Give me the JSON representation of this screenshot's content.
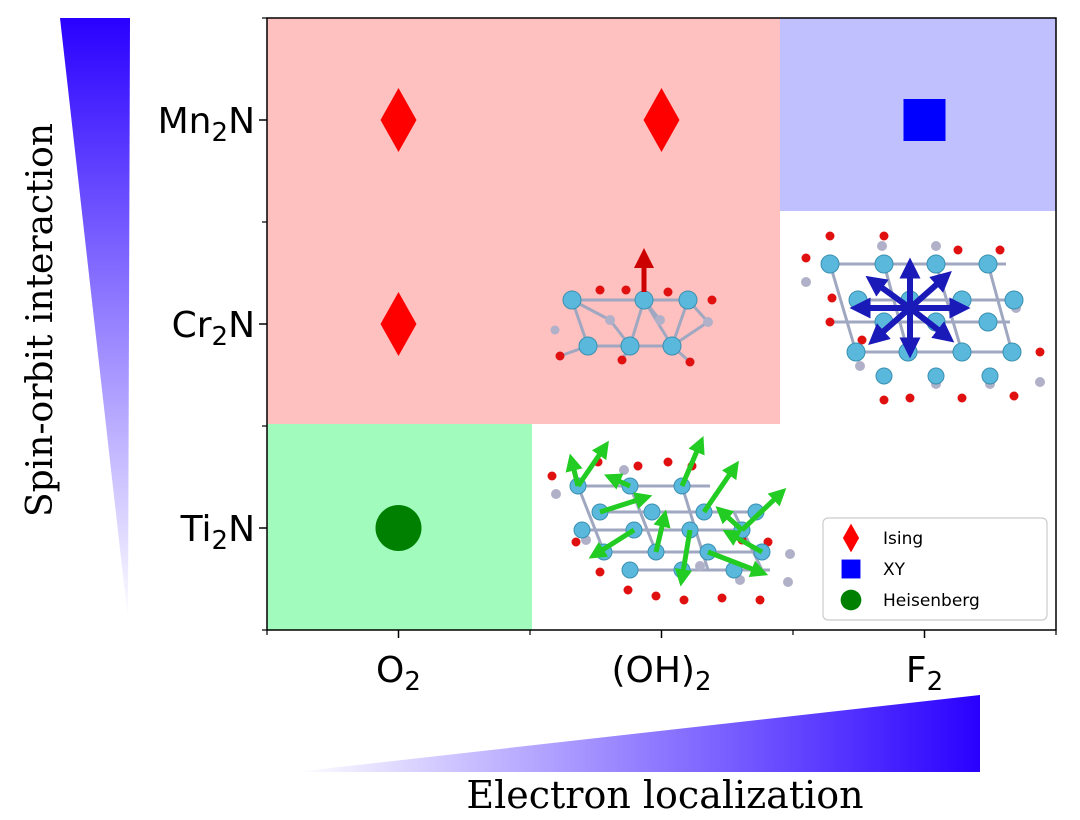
{
  "chart_data": {
    "type": "scatter",
    "title": "",
    "x_categories": [
      {
        "base": "O",
        "sub": "2"
      },
      {
        "base": "(OH)",
        "sub": "2"
      },
      {
        "base": "F",
        "sub": "2"
      }
    ],
    "y_categories": [
      {
        "pre": "Ti",
        "sub": "2",
        "post": "N"
      },
      {
        "pre": "Cr",
        "sub": "2",
        "post": "N"
      },
      {
        "pre": "Mn",
        "sub": "2",
        "post": "N"
      }
    ],
    "xlabel": "Electron localization",
    "ylabel": "Spin-orbit interaction",
    "series": [
      {
        "name": "Ising",
        "marker": "diamond",
        "color": "#ff0000",
        "points": [
          [
            "O2",
            "Mn2N"
          ],
          [
            "(OH)2",
            "Mn2N"
          ],
          [
            "O2",
            "Cr2N"
          ]
        ]
      },
      {
        "name": "XY",
        "marker": "square",
        "color": "#0000ff",
        "points": [
          [
            "F2",
            "Mn2N"
          ]
        ]
      },
      {
        "name": "Heisenberg",
        "marker": "circle",
        "color": "#008000",
        "points": [
          [
            "O2",
            "Ti2N"
          ]
        ]
      }
    ],
    "regions": [
      {
        "model": "Ising",
        "color": "#ffc0c0"
      },
      {
        "model": "XY",
        "color": "#c0c0ff"
      },
      {
        "model": "Heisenberg",
        "color": "#a0fbbd"
      }
    ],
    "legend_position": "bottom-right",
    "grid": false
  },
  "colors": {
    "gradient": "#2a00ff",
    "atom_metal": "#5ab8dc",
    "atom_n": "#b0b0c8",
    "atom_o": "#e01010",
    "arrow_ising": "#cc0000",
    "arrow_xy": "#1a1ab8",
    "arrow_heisenberg": "#22cc22"
  }
}
